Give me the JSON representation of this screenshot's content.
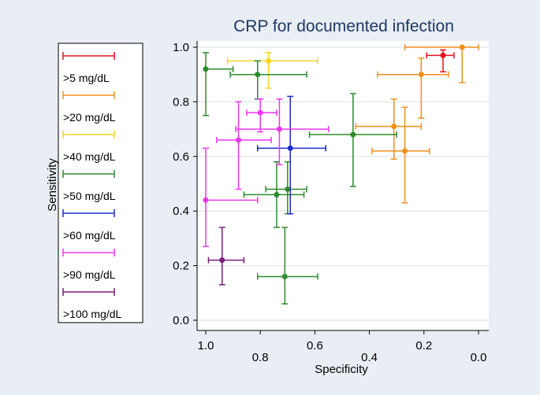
{
  "chart_data": {
    "type": "scatter",
    "title": "CRP for documented infection",
    "xlabel": "Specificity",
    "ylabel": "Sensitivity",
    "xlim": [
      1.0,
      0.0
    ],
    "ylim": [
      0.0,
      1.0
    ],
    "x_ticks": [
      {
        "value": 1.0,
        "label": "1.0"
      },
      {
        "value": 0.8,
        "label": "0.8"
      },
      {
        "value": 0.6,
        "label": "0.6"
      },
      {
        "value": 0.4,
        "label": "0.4"
      },
      {
        "value": 0.2,
        "label": "0.2"
      },
      {
        "value": 0.0,
        "label": "0.0"
      }
    ],
    "y_ticks": [
      {
        "value": 0.0,
        "label": "0.0"
      },
      {
        "value": 0.2,
        "label": "0.2"
      },
      {
        "value": 0.4,
        "label": "0.4"
      },
      {
        "value": 0.6,
        "label": "0.6"
      },
      {
        "value": 0.8,
        "label": "0.8"
      },
      {
        "value": 1.0,
        "label": "1.0"
      }
    ],
    "legend_position": "left",
    "series": [
      {
        "name": ">5 mg/dL",
        "color": "#e8111f",
        "points": [
          {
            "x": 0.13,
            "y": 0.97,
            "xlo": 0.19,
            "xhi": 0.09,
            "ylo": 0.91,
            "yhi": 0.99
          }
        ]
      },
      {
        "name": ">20 mg/dL",
        "color": "#f0901e",
        "points": [
          {
            "x": 0.06,
            "y": 1.0,
            "xlo": 0.27,
            "xhi": 0.0,
            "ylo": 0.87,
            "yhi": 1.0
          },
          {
            "x": 0.21,
            "y": 0.9,
            "xlo": 0.37,
            "xhi": 0.11,
            "ylo": 0.74,
            "yhi": 0.96
          },
          {
            "x": 0.31,
            "y": 0.71,
            "xlo": 0.45,
            "xhi": 0.21,
            "ylo": 0.59,
            "yhi": 0.81
          },
          {
            "x": 0.27,
            "y": 0.62,
            "xlo": 0.39,
            "xhi": 0.18,
            "ylo": 0.43,
            "yhi": 0.78
          }
        ]
      },
      {
        "name": ">40 mg/dL",
        "color": "#f4d32b",
        "points": [
          {
            "x": 0.77,
            "y": 0.95,
            "xlo": 0.92,
            "xhi": 0.59,
            "ylo": 0.85,
            "yhi": 0.98
          }
        ]
      },
      {
        "name": ">50 mg/dL",
        "color": "#2e8b2e",
        "points": [
          {
            "x": 1.0,
            "y": 0.92,
            "xlo": 1.0,
            "xhi": 0.9,
            "ylo": 0.75,
            "yhi": 0.98
          },
          {
            "x": 0.81,
            "y": 0.9,
            "xlo": 0.91,
            "xhi": 0.63,
            "ylo": 0.81,
            "yhi": 0.95
          },
          {
            "x": 0.46,
            "y": 0.68,
            "xlo": 0.62,
            "xhi": 0.3,
            "ylo": 0.49,
            "yhi": 0.83
          },
          {
            "x": 0.7,
            "y": 0.48,
            "xlo": 0.78,
            "xhi": 0.63,
            "ylo": 0.39,
            "yhi": 0.58
          },
          {
            "x": 0.74,
            "y": 0.46,
            "xlo": 0.86,
            "xhi": 0.64,
            "ylo": 0.34,
            "yhi": 0.58
          },
          {
            "x": 0.71,
            "y": 0.16,
            "xlo": 0.81,
            "xhi": 0.59,
            "ylo": 0.06,
            "yhi": 0.34
          }
        ]
      },
      {
        "name": ">60 mg/dL",
        "color": "#1c2bd1",
        "points": [
          {
            "x": 0.69,
            "y": 0.63,
            "xlo": 0.81,
            "xhi": 0.56,
            "ylo": 0.39,
            "yhi": 0.82
          }
        ]
      },
      {
        "name": ">90 mg/dL",
        "color": "#ee36ee",
        "points": [
          {
            "x": 0.8,
            "y": 0.76,
            "xlo": 0.85,
            "xhi": 0.74,
            "ylo": 0.69,
            "yhi": 0.81
          },
          {
            "x": 0.73,
            "y": 0.7,
            "xlo": 0.89,
            "xhi": 0.55,
            "ylo": 0.57,
            "yhi": 0.81
          },
          {
            "x": 0.88,
            "y": 0.66,
            "xlo": 0.96,
            "xhi": 0.76,
            "ylo": 0.48,
            "yhi": 0.8
          },
          {
            "x": 1.0,
            "y": 0.44,
            "xlo": 1.0,
            "xhi": 0.81,
            "ylo": 0.27,
            "yhi": 0.63
          }
        ]
      },
      {
        "name": ">100 mg/dL",
        "color": "#7a1e7a",
        "points": [
          {
            "x": 0.94,
            "y": 0.22,
            "xlo": 0.99,
            "xhi": 0.86,
            "ylo": 0.13,
            "yhi": 0.34
          }
        ]
      }
    ]
  }
}
